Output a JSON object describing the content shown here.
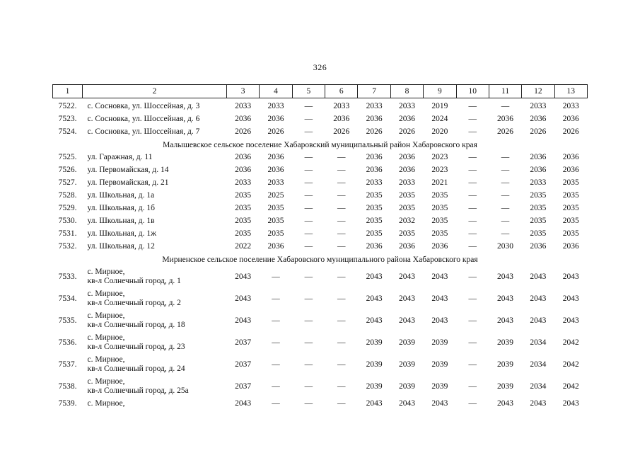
{
  "page": {
    "number": "326"
  },
  "table": {
    "headers": [
      "1",
      "2",
      "3",
      "4",
      "5",
      "6",
      "7",
      "8",
      "9",
      "10",
      "11",
      "12",
      "13"
    ],
    "rows": [
      {
        "type": "data",
        "num": "7522.",
        "address": [
          "с. Сосновка, ул. Шоссейная, д. 3"
        ],
        "values": [
          "2033",
          "2033",
          "—",
          "2033",
          "2033",
          "2033",
          "2019",
          "—",
          "—",
          "2033",
          "2033"
        ]
      },
      {
        "type": "data",
        "num": "7523.",
        "address": [
          "с. Сосновка, ул. Шоссейная, д. 6"
        ],
        "values": [
          "2036",
          "2036",
          "—",
          "2036",
          "2036",
          "2036",
          "2024",
          "—",
          "2036",
          "2036",
          "2036"
        ]
      },
      {
        "type": "data",
        "num": "7524.",
        "address": [
          "с. Сосновка, ул. Шоссейная, д. 7"
        ],
        "values": [
          "2026",
          "2026",
          "—",
          "2026",
          "2026",
          "2026",
          "2020",
          "—",
          "2026",
          "2026",
          "2026"
        ]
      },
      {
        "type": "section",
        "label": "Малышевское сельское поселение Хабаровский муниципальный район Хабаровского края"
      },
      {
        "type": "data",
        "num": "7525.",
        "address": [
          "ул. Гаражная, д. 11"
        ],
        "values": [
          "2036",
          "2036",
          "—",
          "—",
          "2036",
          "2036",
          "2023",
          "—",
          "—",
          "2036",
          "2036"
        ]
      },
      {
        "type": "data",
        "num": "7526.",
        "address": [
          "ул. Первомайская, д. 14"
        ],
        "values": [
          "2036",
          "2036",
          "—",
          "—",
          "2036",
          "2036",
          "2023",
          "—",
          "—",
          "2036",
          "2036"
        ]
      },
      {
        "type": "data",
        "num": "7527.",
        "address": [
          "ул. Первомайская, д. 21"
        ],
        "values": [
          "2033",
          "2033",
          "—",
          "—",
          "2033",
          "2033",
          "2021",
          "—",
          "—",
          "2033",
          "2035"
        ]
      },
      {
        "type": "data",
        "num": "7528.",
        "address": [
          "ул. Школьная, д. 1а"
        ],
        "values": [
          "2035",
          "2025",
          "—",
          "—",
          "2035",
          "2035",
          "2035",
          "—",
          "—",
          "2035",
          "2035"
        ]
      },
      {
        "type": "data",
        "num": "7529.",
        "address": [
          "ул. Школьная, д. 1б"
        ],
        "values": [
          "2035",
          "2035",
          "—",
          "—",
          "2035",
          "2035",
          "2035",
          "—",
          "—",
          "2035",
          "2035"
        ]
      },
      {
        "type": "data",
        "num": "7530.",
        "address": [
          "ул. Школьная, д. 1в"
        ],
        "values": [
          "2035",
          "2035",
          "—",
          "—",
          "2035",
          "2032",
          "2035",
          "—",
          "—",
          "2035",
          "2035"
        ]
      },
      {
        "type": "data",
        "num": "7531.",
        "address": [
          "ул. Школьная, д. 1ж"
        ],
        "values": [
          "2035",
          "2035",
          "—",
          "—",
          "2035",
          "2035",
          "2035",
          "—",
          "—",
          "2035",
          "2035"
        ]
      },
      {
        "type": "data",
        "num": "7532.",
        "address": [
          "ул. Школьная, д. 12"
        ],
        "values": [
          "2022",
          "2036",
          "—",
          "—",
          "2036",
          "2036",
          "2036",
          "—",
          "2030",
          "2036",
          "2036"
        ]
      },
      {
        "type": "section",
        "label": "Мирненское сельское поселение Хабаровского муниципального района Хабаровского края"
      },
      {
        "type": "data",
        "num": "7533.",
        "address": [
          "с. Мирное,",
          "кв-л Солнечный город, д. 1"
        ],
        "values": [
          "2043",
          "—",
          "—",
          "—",
          "2043",
          "2043",
          "2043",
          "—",
          "2043",
          "2043",
          "2043"
        ]
      },
      {
        "type": "data",
        "num": "7534.",
        "address": [
          "с. Мирное,",
          "кв-л Солнечный город, д. 2"
        ],
        "values": [
          "2043",
          "—",
          "—",
          "—",
          "2043",
          "2043",
          "2043",
          "—",
          "2043",
          "2043",
          "2043"
        ]
      },
      {
        "type": "data",
        "num": "7535.",
        "address": [
          "с. Мирное,",
          "кв-л Солнечный город, д. 18"
        ],
        "values": [
          "2043",
          "—",
          "—",
          "—",
          "2043",
          "2043",
          "2043",
          "—",
          "2043",
          "2043",
          "2043"
        ]
      },
      {
        "type": "data",
        "num": "7536.",
        "address": [
          "с. Мирное,",
          "кв-л Солнечный город, д. 23"
        ],
        "values": [
          "2037",
          "—",
          "—",
          "—",
          "2039",
          "2039",
          "2039",
          "—",
          "2039",
          "2034",
          "2042"
        ]
      },
      {
        "type": "data",
        "num": "7537.",
        "address": [
          "с. Мирное,",
          "кв-л Солнечный город, д. 24"
        ],
        "values": [
          "2037",
          "—",
          "—",
          "—",
          "2039",
          "2039",
          "2039",
          "—",
          "2039",
          "2034",
          "2042"
        ]
      },
      {
        "type": "data",
        "num": "7538.",
        "address": [
          "с. Мирное,",
          "кв-л Солнечный город, д. 25а"
        ],
        "values": [
          "2037",
          "—",
          "—",
          "—",
          "2039",
          "2039",
          "2039",
          "—",
          "2039",
          "2034",
          "2042"
        ]
      },
      {
        "type": "data",
        "num": "7539.",
        "address": [
          "с. Мирное,"
        ],
        "values": [
          "2043",
          "—",
          "—",
          "—",
          "2043",
          "2043",
          "2043",
          "—",
          "2043",
          "2043",
          "2043"
        ]
      }
    ]
  }
}
